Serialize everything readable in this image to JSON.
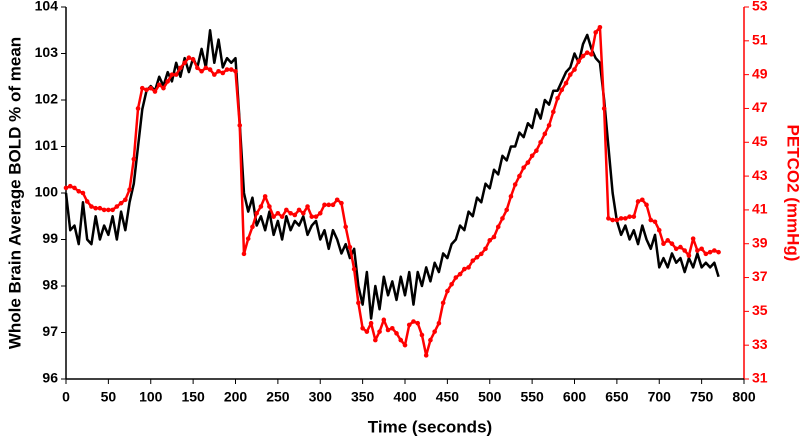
{
  "chart_data": {
    "type": "line",
    "x_label": "Time (seconds)",
    "y_label": "Whole Brain Average BOLD % of mean",
    "y2_label": "PETCO2 (mmHg)",
    "x": [
      0,
      5,
      10,
      15,
      20,
      25,
      30,
      35,
      40,
      45,
      50,
      55,
      60,
      65,
      70,
      75,
      80,
      85,
      90,
      95,
      100,
      105,
      110,
      115,
      120,
      125,
      130,
      135,
      140,
      145,
      150,
      155,
      160,
      165,
      170,
      175,
      180,
      185,
      190,
      195,
      200,
      205,
      210,
      215,
      220,
      225,
      230,
      235,
      240,
      245,
      250,
      255,
      260,
      265,
      270,
      275,
      280,
      285,
      290,
      295,
      300,
      305,
      310,
      315,
      320,
      325,
      330,
      335,
      340,
      345,
      350,
      355,
      360,
      365,
      370,
      375,
      380,
      385,
      390,
      395,
      400,
      405,
      410,
      415,
      420,
      425,
      430,
      435,
      440,
      445,
      450,
      455,
      460,
      465,
      470,
      475,
      480,
      485,
      490,
      495,
      500,
      505,
      510,
      515,
      520,
      525,
      530,
      535,
      540,
      545,
      550,
      555,
      560,
      565,
      570,
      575,
      580,
      585,
      590,
      595,
      600,
      605,
      610,
      615,
      620,
      625,
      630,
      635,
      640,
      645,
      650,
      655,
      660,
      665,
      670,
      675,
      680,
      685,
      690,
      695,
      700,
      705,
      710,
      715,
      720,
      725,
      730,
      735,
      740,
      745,
      750,
      755,
      760,
      765,
      770
    ],
    "xlim": [
      0,
      800
    ],
    "xticks": [
      0,
      50,
      100,
      150,
      200,
      250,
      300,
      350,
      400,
      450,
      500,
      550,
      600,
      650,
      700,
      750,
      800
    ],
    "ylim": [
      96,
      104
    ],
    "yticks": [
      96,
      97,
      98,
      99,
      100,
      101,
      102,
      103,
      104
    ],
    "y2lim": [
      31,
      53
    ],
    "y2ticks": [
      31,
      33,
      35,
      37,
      39,
      41,
      43,
      45,
      47,
      49,
      51,
      53
    ],
    "series": [
      {
        "name": "Whole Brain Average BOLD",
        "color": "#000000",
        "markers": false,
        "values": [
          100.0,
          99.2,
          99.3,
          98.9,
          99.8,
          99.0,
          98.9,
          99.5,
          99.0,
          99.3,
          99.1,
          99.5,
          99.0,
          99.6,
          99.2,
          99.8,
          100.2,
          101.0,
          101.8,
          102.2,
          102.3,
          102.2,
          102.5,
          102.3,
          102.6,
          102.4,
          102.8,
          102.5,
          102.9,
          102.6,
          102.9,
          102.7,
          103.1,
          102.7,
          103.5,
          102.8,
          103.3,
          102.7,
          102.9,
          102.8,
          102.9,
          101.5,
          100.0,
          99.6,
          99.9,
          99.3,
          99.5,
          99.2,
          99.6,
          99.1,
          99.4,
          99.0,
          99.5,
          99.2,
          99.4,
          99.3,
          99.5,
          99.1,
          99.3,
          99.4,
          99.0,
          99.2,
          98.8,
          99.2,
          99.0,
          98.7,
          98.9,
          98.6,
          98.8,
          98.0,
          97.6,
          98.3,
          97.3,
          98.0,
          97.5,
          98.2,
          97.8,
          98.1,
          97.7,
          98.2,
          97.8,
          98.3,
          97.6,
          98.3,
          98.0,
          98.4,
          98.1,
          98.5,
          98.3,
          98.7,
          98.6,
          98.9,
          99.0,
          99.3,
          99.2,
          99.6,
          99.5,
          99.9,
          99.8,
          100.2,
          100.1,
          100.5,
          100.4,
          100.8,
          100.7,
          101.0,
          101.0,
          101.3,
          101.2,
          101.5,
          101.4,
          101.8,
          101.6,
          102.0,
          101.9,
          102.2,
          102.2,
          102.4,
          102.6,
          102.7,
          103.0,
          102.8,
          103.2,
          103.4,
          103.1,
          102.9,
          102.8,
          102.0,
          101.0,
          100.0,
          99.4,
          99.1,
          99.3,
          99.0,
          99.2,
          98.9,
          99.3,
          99.0,
          98.8,
          99.1,
          98.4,
          98.6,
          98.4,
          98.7,
          98.5,
          98.6,
          98.3,
          98.6,
          98.4,
          98.7,
          98.4,
          98.5,
          98.4,
          98.5,
          98.2
        ]
      },
      {
        "name": "PETCO2",
        "color": "#ff0000",
        "axis": "y2",
        "markers": true,
        "values": [
          42.3,
          42.4,
          42.3,
          42.1,
          42.0,
          41.5,
          41.2,
          41.1,
          41.1,
          41.0,
          41.0,
          41.0,
          41.2,
          41.4,
          41.6,
          42.2,
          44.0,
          47.0,
          48.2,
          48.1,
          48.2,
          48.0,
          48.4,
          48.2,
          48.6,
          49.0,
          49.0,
          49.4,
          49.7,
          50.0,
          49.9,
          49.4,
          49.2,
          49.4,
          49.3,
          49.0,
          49.2,
          49.1,
          49.3,
          49.3,
          49.2,
          46.0,
          38.4,
          39.3,
          40.0,
          40.8,
          41.2,
          41.8,
          41.2,
          40.6,
          40.8,
          40.6,
          41.0,
          40.8,
          40.7,
          41.0,
          40.8,
          41.2,
          40.6,
          40.6,
          40.8,
          41.3,
          41.3,
          41.3,
          41.6,
          41.4,
          40.0,
          38.8,
          37.5,
          35.5,
          34.0,
          33.8,
          34.3,
          33.3,
          33.8,
          34.5,
          33.9,
          34.0,
          33.7,
          33.3,
          33.0,
          34.2,
          34.4,
          34.3,
          33.6,
          32.4,
          33.3,
          33.8,
          34.3,
          35.5,
          36.2,
          36.6,
          37.0,
          37.2,
          37.5,
          37.6,
          38.0,
          38.2,
          38.4,
          38.7,
          39.2,
          39.4,
          40.0,
          40.5,
          41.0,
          41.8,
          42.5,
          43.0,
          43.5,
          43.8,
          44.2,
          44.5,
          45.0,
          45.5,
          46.0,
          46.8,
          47.6,
          48.1,
          48.5,
          49.0,
          49.3,
          49.8,
          50.1,
          50.3,
          50.2,
          51.5,
          51.8,
          47.0,
          40.5,
          40.4,
          40.4,
          40.5,
          40.5,
          40.6,
          40.6,
          41.5,
          41.6,
          41.3,
          40.4,
          40.3,
          39.8,
          39.0,
          39.2,
          39.0,
          38.7,
          38.8,
          38.6,
          38.3,
          39.3,
          38.6,
          38.7,
          38.4,
          38.5,
          38.6,
          38.5
        ]
      }
    ],
    "y2_color": "#ff0000"
  }
}
